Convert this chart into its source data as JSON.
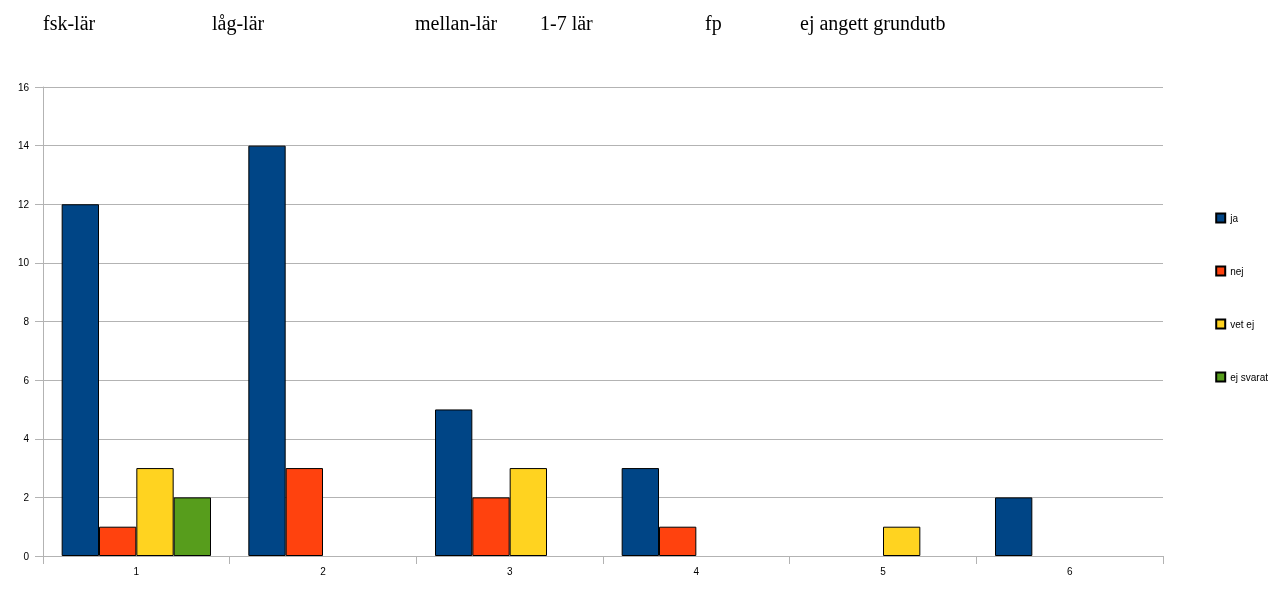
{
  "chart_data": {
    "type": "bar",
    "annotations": [
      "fsk-lär",
      "låg-lär",
      "mellan-lär",
      "1-7 lär",
      "fp",
      "ej angett grundutb"
    ],
    "categories": [
      "1",
      "2",
      "3",
      "4",
      "5",
      "6"
    ],
    "series": [
      {
        "name": "ja",
        "color": "#004586",
        "values": [
          12,
          14,
          5,
          3,
          0,
          2
        ]
      },
      {
        "name": "nej",
        "color": "#ff420e",
        "values": [
          1,
          3,
          2,
          1,
          0,
          0
        ]
      },
      {
        "name": "vet ej",
        "color": "#ffd320",
        "values": [
          3,
          0,
          3,
          0,
          1,
          0
        ]
      },
      {
        "name": "ej svarat",
        "color": "#579d1c",
        "values": [
          2,
          0,
          0,
          0,
          0,
          0
        ]
      }
    ],
    "ylim": [
      0,
      16
    ],
    "yticks": [
      0,
      2,
      4,
      6,
      8,
      10,
      12,
      14,
      16
    ],
    "grid": "y",
    "legend": "right"
  }
}
